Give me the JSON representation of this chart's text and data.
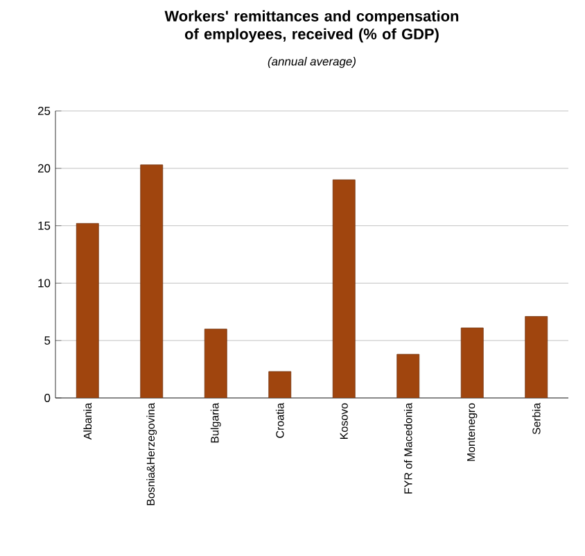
{
  "chart_data": {
    "type": "bar",
    "title": "Workers' remittances and compensation of employees, received (% of GDP)",
    "subtitle": "(annual average)",
    "categories": [
      "Albania",
      "Bosnia&Herzegovina",
      "Bulgaria",
      "Croatia",
      "Kosovo",
      "FYR of Macedonia",
      "Montenegro",
      "Serbia"
    ],
    "values": [
      15.2,
      20.3,
      6.0,
      2.3,
      19.0,
      3.8,
      6.1,
      7.1
    ],
    "color": "#a0450e",
    "ylim": [
      0,
      25
    ],
    "yticks": [
      0,
      5,
      10,
      15,
      20,
      25
    ],
    "grid": "y"
  }
}
